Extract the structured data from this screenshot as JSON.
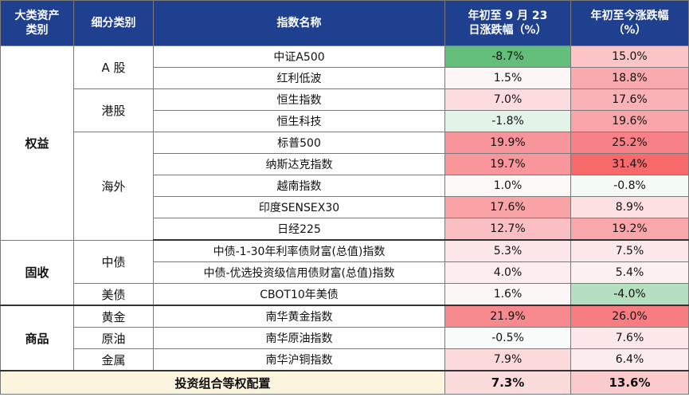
{
  "headers": {
    "asset_class": [
      "大类资产",
      "类别"
    ],
    "sub_class": "细分类别",
    "index_name": "指数名称",
    "ytd_sep23": [
      "年初至 9 月 23",
      "日涨跌幅（%）"
    ],
    "ytd_now": [
      "年初至今涨跌幅",
      "（%）"
    ]
  },
  "rows": [
    {
      "cat": "权益",
      "sub": "A 股",
      "name": "中证A500",
      "v1": "-8.7%",
      "v2": "15.0%",
      "c1": "#63be7b",
      "c2": "#fbc4c7"
    },
    {
      "name": "红利低波",
      "v1": "1.5%",
      "v2": "18.8%",
      "c1": "#fdf6f6",
      "c2": "#f9aaae"
    },
    {
      "sub": "港股",
      "name": "恒生指数",
      "v1": "7.0%",
      "v2": "17.6%",
      "c1": "#fcdcde",
      "c2": "#fab2b6"
    },
    {
      "name": "恒生科技",
      "v1": "-1.8%",
      "v2": "19.6%",
      "c1": "#e4f3e8",
      "c2": "#f9a5a9"
    },
    {
      "sub": "海外",
      "name": "标普500",
      "v1": "19.9%",
      "v2": "25.2%",
      "c1": "#f8959a",
      "c2": "#f78186"
    },
    {
      "name": "纳斯达克指数",
      "v1": "19.7%",
      "v2": "31.4%",
      "c1": "#f8969b",
      "c2": "#f8696b"
    },
    {
      "name": "越南指数",
      "v1": "1.0%",
      "v2": "-0.8%",
      "c1": "#fef9f9",
      "c2": "#f4faf6"
    },
    {
      "name": "印度SENSEX30",
      "v1": "17.6%",
      "v2": "8.9%",
      "c1": "#f9a3a7",
      "c2": "#fce0e2"
    },
    {
      "name": "日经225",
      "v1": "12.7%",
      "v2": "19.2%",
      "c1": "#fabfc2",
      "c2": "#f9a7ab"
    },
    {
      "cat": "固收",
      "sub": "中债",
      "name": "中债-1-30年利率债财富(总值)指数",
      "v1": "5.3%",
      "v2": "7.5%",
      "c1": "#fde6e7",
      "c2": "#fde8e9"
    },
    {
      "name": "中债-优选投资级信用债财富(总值)指数",
      "v1": "4.0%",
      "v2": "5.4%",
      "c1": "#fdedee",
      "c2": "#fdf0f1"
    },
    {
      "sub": "美债",
      "name": "CBOT10年美债",
      "v1": "1.6%",
      "v2": "-4.0%",
      "c1": "#fdf6f6",
      "c2": "#b4dfc0"
    },
    {
      "cat": "商品",
      "sub": "黄金",
      "name": "南华黄金指数",
      "v1": "21.9%",
      "v2": "26.0%",
      "c1": "#f78a8f",
      "c2": "#f87d82"
    },
    {
      "sub": "原油",
      "name": "南华原油指数",
      "v1": "-0.5%",
      "v2": "7.6%",
      "c1": "#f8fbf9",
      "c2": "#fde8e9"
    },
    {
      "sub": "金属",
      "name": "南华沪铜指数",
      "v1": "7.9%",
      "v2": "6.4%",
      "c1": "#fcd9db",
      "c2": "#fdeced"
    }
  ],
  "total": {
    "label": "投资组合等权配置",
    "v1": "7.3%",
    "v2": "13.6%",
    "c1": "#fcdbdd",
    "c2": "#fbcacd"
  }
}
